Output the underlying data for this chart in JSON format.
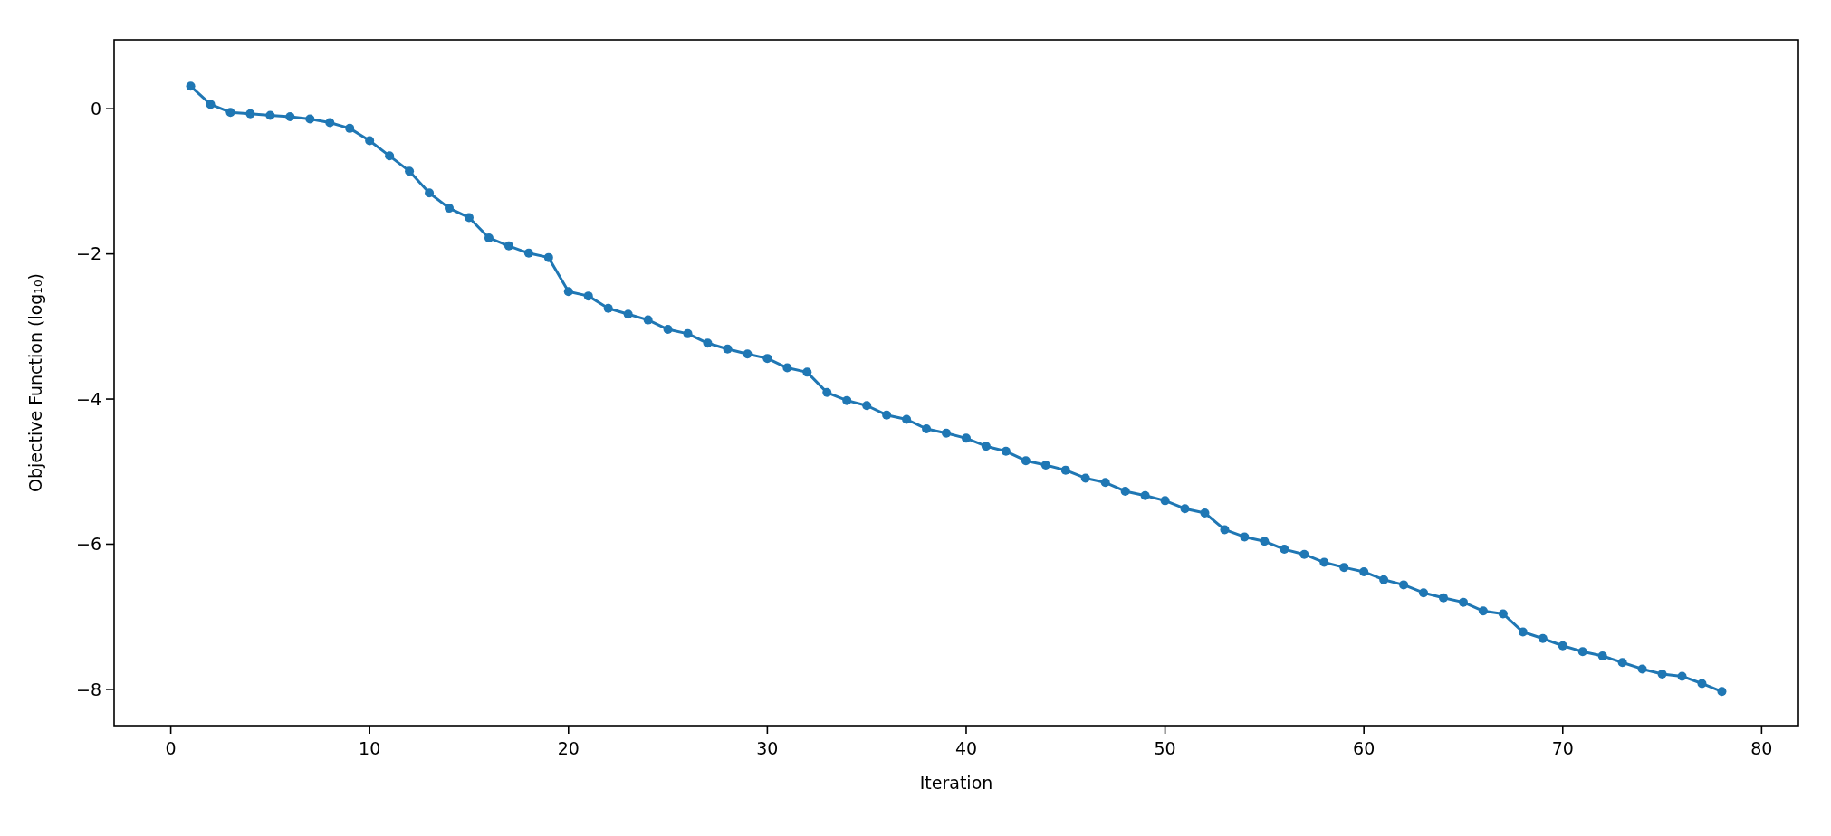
{
  "chart_data": {
    "type": "line",
    "xlabel": "Iteration",
    "ylabel": "Objective Function (log₁₀)",
    "x": [
      1,
      2,
      3,
      4,
      5,
      6,
      7,
      8,
      9,
      10,
      11,
      12,
      13,
      14,
      15,
      16,
      17,
      18,
      19,
      20,
      21,
      22,
      23,
      24,
      25,
      26,
      27,
      28,
      29,
      30,
      31,
      32,
      33,
      34,
      35,
      36,
      37,
      38,
      39,
      40,
      41,
      42,
      43,
      44,
      45,
      46,
      47,
      48,
      49,
      50,
      51,
      52,
      53,
      54,
      55,
      56,
      57,
      58,
      59,
      60,
      61,
      62,
      63,
      64,
      65,
      66,
      67,
      68,
      69,
      70,
      71,
      72,
      73,
      74,
      75,
      76,
      77,
      78
    ],
    "series": [
      {
        "color": "#1f77b4",
        "values": [
          0.31,
          0.06,
          -0.05,
          -0.07,
          -0.09,
          -0.11,
          -0.14,
          -0.19,
          -0.27,
          -0.44,
          -0.65,
          -0.86,
          -1.16,
          -1.37,
          -1.5,
          -1.78,
          -1.89,
          -1.99,
          -2.05,
          -2.52,
          -2.58,
          -2.75,
          -2.83,
          -2.91,
          -3.04,
          -3.1,
          -3.23,
          -3.31,
          -3.38,
          -3.44,
          -3.57,
          -3.63,
          -3.91,
          -4.02,
          -4.09,
          -4.22,
          -4.28,
          -4.41,
          -4.47,
          -4.54,
          -4.65,
          -4.72,
          -4.85,
          -4.91,
          -4.98,
          -5.09,
          -5.15,
          -5.27,
          -5.33,
          -5.4,
          -5.51,
          -5.57,
          -5.8,
          -5.9,
          -5.96,
          -6.07,
          -6.14,
          -6.25,
          -6.32,
          -6.38,
          -6.49,
          -6.56,
          -6.67,
          -6.74,
          -6.8,
          -6.92,
          -6.96,
          -7.21,
          -7.3,
          -7.4,
          -7.48,
          -7.54,
          -7.63,
          -7.72,
          -7.79,
          -7.82,
          -7.92,
          -8.03
        ]
      }
    ],
    "xlim": [
      -2.85,
      81.85
    ],
    "ylim": [
      -8.5,
      0.95
    ],
    "xticks": [
      0,
      10,
      20,
      30,
      40,
      50,
      60,
      70,
      80
    ],
    "yticks": [
      {
        "value": 0,
        "label": "0"
      },
      {
        "value": -2,
        "label": "−2"
      },
      {
        "value": -4,
        "label": "−4"
      },
      {
        "value": -6,
        "label": "−6"
      },
      {
        "value": -8,
        "label": "−8"
      }
    ],
    "grid": false,
    "marker": "circle",
    "line_style": "solid"
  }
}
